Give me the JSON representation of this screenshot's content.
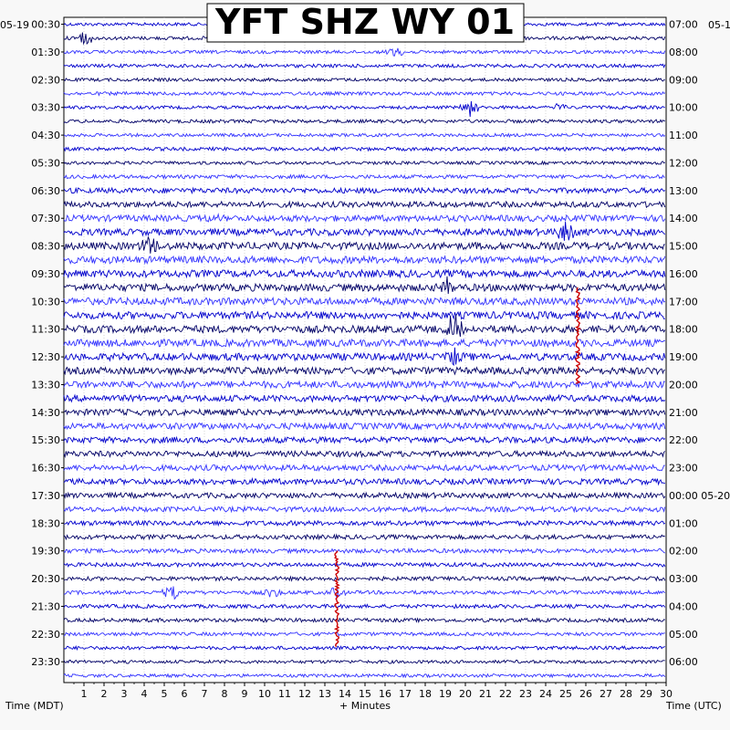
{
  "chart_data": {
    "type": "line",
    "title": "YFT SHZ WY 01",
    "date_left": "05-19",
    "date_right": "05-1",
    "left_axis_label": "Time (MDT)",
    "right_axis_label": "Time (UTC)",
    "xlabel": "+ Minutes",
    "xlim": [
      0,
      30
    ],
    "x_ticks": [
      "1",
      "2",
      "3",
      "4",
      "5",
      "6",
      "7",
      "8",
      "9",
      "10",
      "11",
      "12",
      "13",
      "14",
      "15",
      "16",
      "17",
      "18",
      "19",
      "20",
      "21",
      "22",
      "23",
      "24",
      "25",
      "26",
      "27",
      "28",
      "29",
      "30"
    ],
    "left_time_labels": [
      "00:30",
      "01:30",
      "02:30",
      "03:30",
      "04:30",
      "05:30",
      "06:30",
      "07:30",
      "08:30",
      "09:30",
      "10:30",
      "11:30",
      "12:30",
      "13:30",
      "14:30",
      "15:30",
      "16:30",
      "17:30",
      "18:30",
      "19:30",
      "20:30",
      "21:30",
      "22:30",
      "23:30"
    ],
    "right_time_labels": [
      "07:00",
      "08:00",
      "09:00",
      "10:00",
      "11:00",
      "12:00",
      "13:00",
      "14:00",
      "15:00",
      "16:00",
      "17:00",
      "18:00",
      "19:00",
      "20:00",
      "21:00",
      "22:00",
      "23:00",
      "00:00 05-20",
      "01:00",
      "02:00",
      "03:00",
      "04:00",
      "05:00",
      "06:00"
    ],
    "trace_count": 48,
    "trace_colors": [
      "#0000cc",
      "#000066",
      "#3333ff"
    ],
    "event_color": "#cc0000",
    "trace_noise_level": [
      0.2,
      0.25,
      0.2,
      0.25,
      0.2,
      0.25,
      0.2,
      0.25,
      0.2,
      0.25,
      0.2,
      0.3,
      0.6,
      0.7,
      0.8,
      0.9,
      1.0,
      1.0,
      1.0,
      1.0,
      1.0,
      1.0,
      1.0,
      1.0,
      1.0,
      0.95,
      0.9,
      0.85,
      0.8,
      0.8,
      0.75,
      0.7,
      0.7,
      0.7,
      0.6,
      0.55,
      0.5,
      0.45,
      0.4,
      0.35,
      0.35,
      0.3,
      0.3,
      0.3,
      0.25,
      0.25,
      0.2,
      0.2
    ],
    "events": [
      {
        "trace": 1,
        "minute": 1.0,
        "amplitude": 1.4
      },
      {
        "trace": 2,
        "minute": 16.5,
        "amplitude": 1.0
      },
      {
        "trace": 6,
        "minute": 20.2,
        "amplitude": 1.8
      },
      {
        "trace": 6,
        "minute": 24.7,
        "amplitude": 1.0
      },
      {
        "trace": 14,
        "minute": 7.4,
        "amplitude": 1.0
      },
      {
        "trace": 15,
        "minute": 25.0,
        "amplitude": 2.0
      },
      {
        "trace": 16,
        "minute": 4.3,
        "amplitude": 2.0
      },
      {
        "trace": 19,
        "minute": 19.1,
        "amplitude": 1.6
      },
      {
        "trace": 22,
        "minute": 19.4,
        "amplitude": 2.6
      },
      {
        "trace": 24,
        "minute": 19.4,
        "amplitude": 2.2
      },
      {
        "trace": 41,
        "minute": 5.4,
        "amplitude": 1.4
      },
      {
        "trace": 41,
        "minute": 10.4,
        "amplitude": 1.0
      },
      {
        "trace": 41,
        "minute": 13.6,
        "amplitude": 1.2
      }
    ],
    "marked_events": [
      {
        "minute": 25.6,
        "from_trace": 19,
        "to_trace": 26
      },
      {
        "minute": 13.6,
        "from_trace": 38,
        "to_trace": 45
      }
    ],
    "grid": true
  }
}
